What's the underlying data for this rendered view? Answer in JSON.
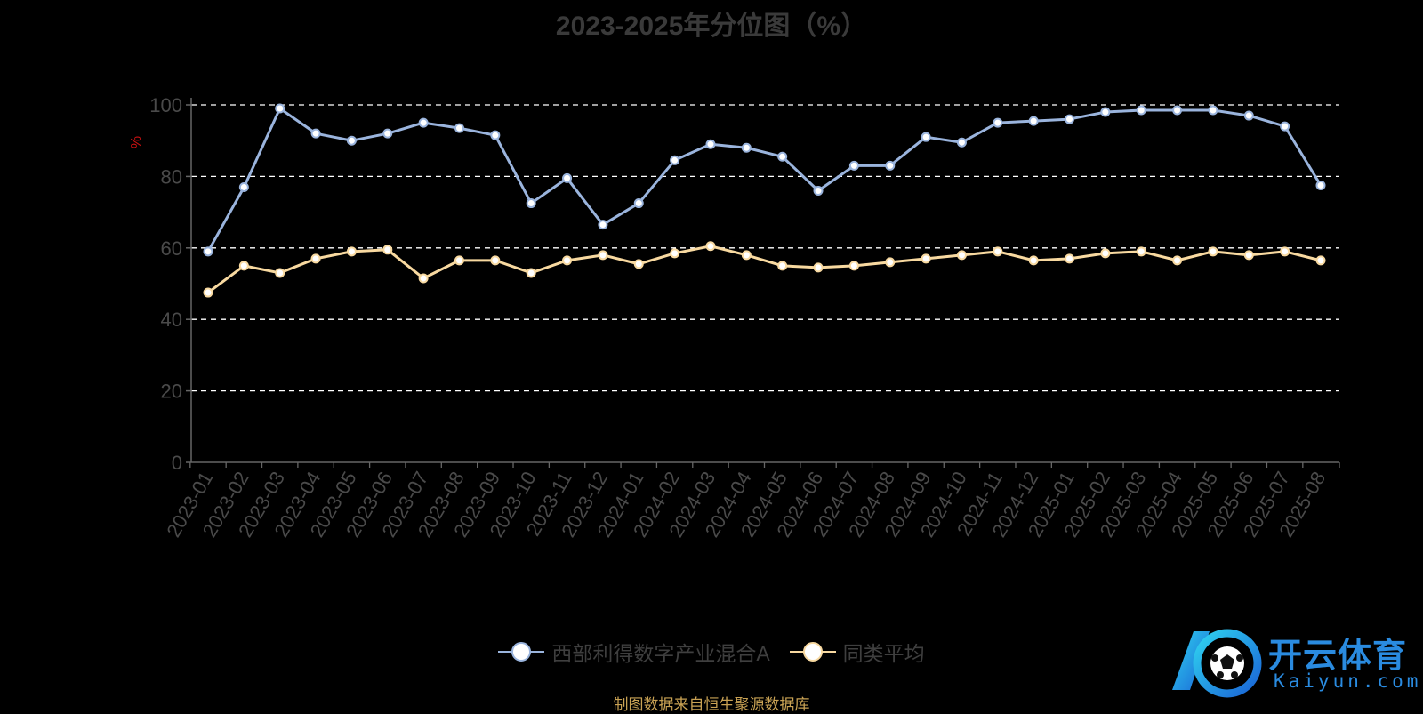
{
  "chart": {
    "title": "2023-2025年分位图（%）",
    "source_note": "制图数据来自恒生聚源数据库"
  },
  "chart_data": {
    "type": "line",
    "title": "2023-2025年分位图（%）",
    "ylabel": "%",
    "ylim": [
      0,
      100
    ],
    "yticks": [
      0,
      20,
      40,
      60,
      80,
      100
    ],
    "grid": true,
    "legend_position": "bottom-center",
    "x": [
      "2023-01",
      "2023-02",
      "2023-03",
      "2023-04",
      "2023-05",
      "2023-06",
      "2023-07",
      "2023-08",
      "2023-09",
      "2023-10",
      "2023-11",
      "2023-12",
      "2024-01",
      "2024-02",
      "2024-03",
      "2024-04",
      "2024-05",
      "2024-06",
      "2024-07",
      "2024-08",
      "2024-09",
      "2024-10",
      "2024-11",
      "2024-12",
      "2025-01",
      "2025-02",
      "2025-03",
      "2025-04",
      "2025-05",
      "2025-06",
      "2025-07",
      "2025-08"
    ],
    "series": [
      {
        "name": "西部利得数字产业混合A",
        "color": "#9ab4dd",
        "values": [
          59,
          77,
          99,
          92,
          90,
          92,
          95,
          93.5,
          91.5,
          72.5,
          79.5,
          66.5,
          72.5,
          84.5,
          89,
          88,
          85.5,
          76,
          83,
          83,
          91,
          89.5,
          95,
          95.5,
          96,
          98,
          98.5,
          98.5,
          98.5,
          97,
          94,
          77.5
        ]
      },
      {
        "name": "同类平均",
        "color": "#f8d9a0",
        "values": [
          47.5,
          55,
          53,
          57,
          59,
          59.5,
          51.5,
          56.5,
          56.5,
          53,
          56.5,
          58,
          55.5,
          58.5,
          60.5,
          58,
          55,
          54.5,
          55,
          56,
          57,
          58,
          59,
          56.5,
          57,
          58.5,
          59,
          56.5,
          59,
          58,
          59,
          56.5
        ]
      }
    ]
  },
  "logo": {
    "name": "开云体育",
    "domain": "Kaiyun.com",
    "icon": "soccer-ball-icon"
  }
}
